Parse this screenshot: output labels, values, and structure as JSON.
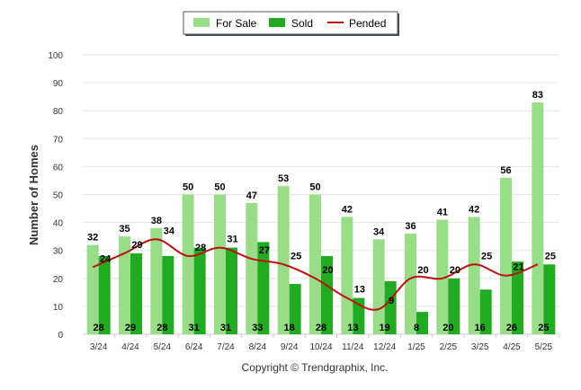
{
  "chart_data": {
    "type": "bar",
    "categories": [
      "3/24",
      "4/24",
      "5/24",
      "6/24",
      "7/24",
      "8/24",
      "9/24",
      "10/24",
      "11/24",
      "12/24",
      "1/25",
      "2/25",
      "3/25",
      "4/25",
      "5/25"
    ],
    "series": [
      {
        "name": "For Sale",
        "type": "bar",
        "color": "#99dd88",
        "values": [
          32,
          35,
          38,
          50,
          50,
          47,
          53,
          50,
          42,
          34,
          36,
          41,
          42,
          56,
          83
        ]
      },
      {
        "name": "Sold",
        "type": "bar",
        "color": "#22aa22",
        "values": [
          28,
          29,
          28,
          31,
          31,
          33,
          18,
          28,
          13,
          19,
          8,
          20,
          16,
          26,
          25
        ]
      },
      {
        "name": "Pended",
        "type": "line",
        "color": "#bb1111",
        "values": [
          24,
          29,
          34,
          28,
          31,
          27,
          25,
          20,
          13,
          9,
          20,
          20,
          25,
          21,
          25
        ]
      }
    ],
    "ylabel": "Number of Homes",
    "xlabel": "",
    "ylim": [
      0,
      100
    ],
    "yticks": [
      0,
      10,
      20,
      30,
      40,
      50,
      60,
      70,
      80,
      90,
      100
    ],
    "grid": true,
    "legend_position": "top-center"
  },
  "footer": {
    "copyright": "Copyright © Trendgraphix, Inc."
  }
}
